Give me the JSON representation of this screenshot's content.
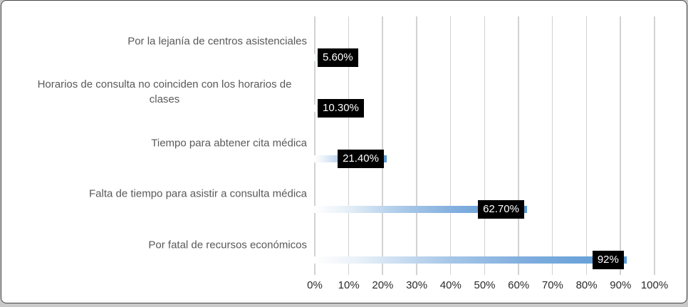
{
  "chart_data": {
    "type": "bar",
    "orientation": "horizontal",
    "title": "",
    "categories": [
      "Por la lejanía de centros asistenciales",
      "Horarios de consulta no coinciden con los horarios de clases",
      "Tiempo para abtener cita médica",
      "Falta de tiempo para asistir a consulta médica",
      "Por fatal de recursos económicos"
    ],
    "values": [
      5.6,
      10.3,
      21.4,
      62.7,
      92
    ],
    "data_labels": [
      "5.60%",
      "10.30%",
      "21.40%",
      "62.70%",
      "92%"
    ],
    "x_ticks": [
      "0%",
      "10%",
      "20%",
      "30%",
      "40%",
      "50%",
      "60%",
      "70%",
      "80%",
      "90%",
      "100%"
    ],
    "xlim": [
      0,
      100
    ],
    "grid": "vertical-only",
    "legend": "none",
    "colors": {
      "bar_gradient_start": "#ffffff",
      "bar_gradient_mid": "#a9c8e8",
      "bar_gradient_end": "#5b9bd5",
      "data_label_bg": "#000000",
      "data_label_text": "#ffffff",
      "gridline": "#d2d2d2",
      "category_text": "#595959",
      "tick_text": "#2b2b2b",
      "chart_border": "#454545"
    }
  }
}
